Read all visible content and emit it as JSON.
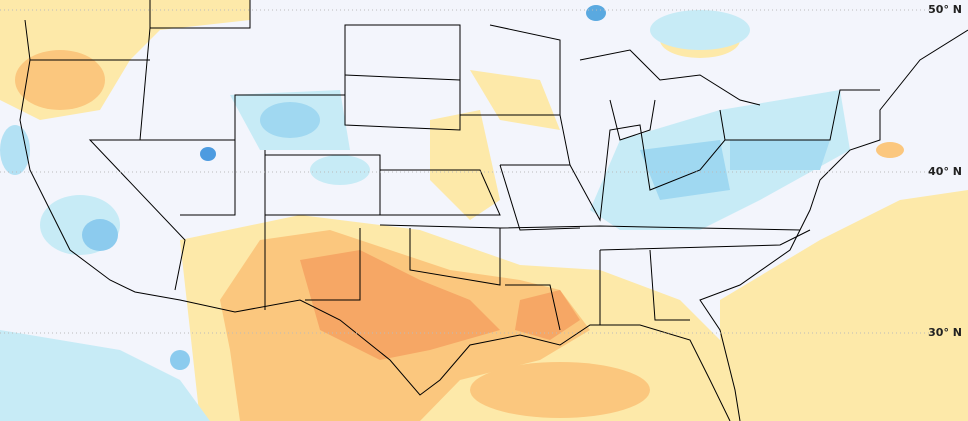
{
  "latitude_labels": [
    "50° N",
    "40° N",
    "30° N"
  ]
}
